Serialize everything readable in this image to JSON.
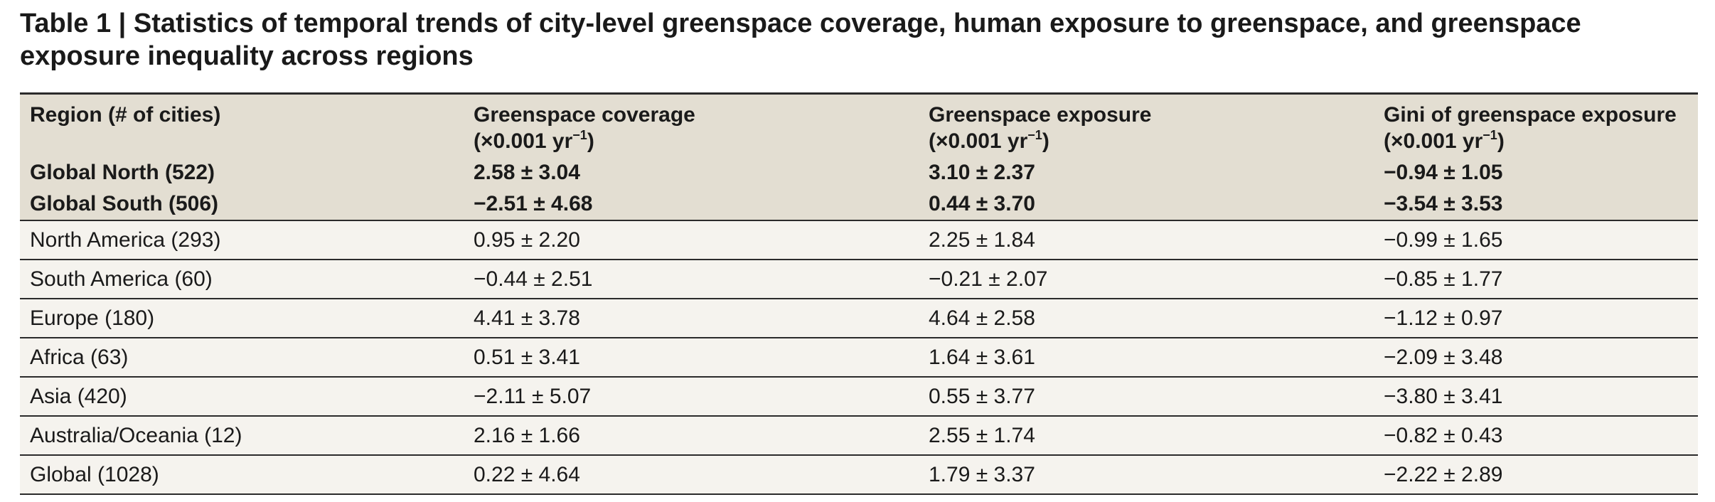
{
  "title": "Table 1 | Statistics of temporal trends of city-level greenspace coverage, human exposure to greenspace, and greenspace exposure inequality across regions",
  "columns": [
    {
      "label": "Region (# of cities)",
      "unit_prefix": "",
      "unit_sup": "",
      "unit_suffix": ""
    },
    {
      "label": "Greenspace coverage",
      "unit_prefix": "(×0.001 yr",
      "unit_sup": "−1",
      "unit_suffix": ")"
    },
    {
      "label": "Greenspace exposure",
      "unit_prefix": "(×0.001 yr",
      "unit_sup": "−1",
      "unit_suffix": ")"
    },
    {
      "label": "Gini of greenspace exposure",
      "unit_prefix": "(×0.001 yr",
      "unit_sup": "−1",
      "unit_suffix": ")"
    }
  ],
  "summary_rows": [
    {
      "region": "Global North (522)",
      "coverage": "2.58 ± 3.04",
      "exposure": "3.10 ± 2.37",
      "gini": "−0.94 ± 1.05"
    },
    {
      "region": "Global South (506)",
      "coverage": "−2.51 ± 4.68",
      "exposure": "0.44 ± 3.70",
      "gini": "−3.54 ± 3.53"
    }
  ],
  "rows": [
    {
      "region": "North America (293)",
      "coverage": "0.95 ± 2.20",
      "exposure": "2.25 ± 1.84",
      "gini": "−0.99 ± 1.65"
    },
    {
      "region": "South America (60)",
      "coverage": "−0.44 ± 2.51",
      "exposure": "−0.21 ± 2.07",
      "gini": "−0.85 ± 1.77"
    },
    {
      "region": "Europe (180)",
      "coverage": "4.41 ± 3.78",
      "exposure": "4.64 ± 2.58",
      "gini": "−1.12 ± 0.97"
    },
    {
      "region": "Africa (63)",
      "coverage": "0.51 ± 3.41",
      "exposure": "1.64 ± 3.61",
      "gini": "−2.09 ± 3.48"
    },
    {
      "region": "Asia (420)",
      "coverage": "−2.11 ± 5.07",
      "exposure": "0.55 ± 3.77",
      "gini": "−3.80 ± 3.41"
    },
    {
      "region": "Australia/Oceania (12)",
      "coverage": "2.16 ± 1.66",
      "exposure": "2.55 ± 1.74",
      "gini": "−0.82 ± 0.43"
    },
    {
      "region": "Global (1028)",
      "coverage": "0.22 ± 4.64",
      "exposure": "1.79 ± 3.37",
      "gini": "−2.22 ± 2.89"
    }
  ],
  "colors": {
    "header_bg": "#e3ded2",
    "row_bg": "#f5f3ee",
    "rule": "#2b2b2b"
  }
}
